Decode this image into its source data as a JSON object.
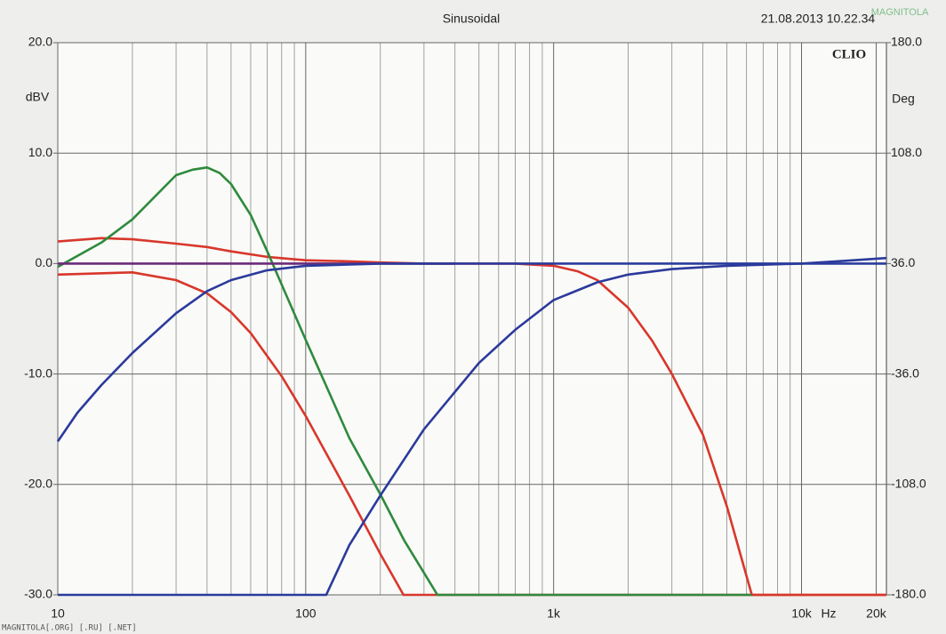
{
  "chart_data": {
    "type": "line",
    "title": "Sinusoidal",
    "timestamp": "21.08.2013 10.22.34",
    "brand": "CLIO",
    "watermark": "MAGNITOLA",
    "footer": "MAGNITOLA[.ORG] [.RU] [.NET]",
    "ylabel": "dBV",
    "y2label": "Deg",
    "xlabel": "Hz",
    "log_x": true,
    "grid": true,
    "xlim": [
      10,
      22000
    ],
    "ylim": [
      -30,
      20
    ],
    "y2lim": [
      -180,
      180
    ],
    "xticks": [
      10,
      100,
      {
        "value": 1000,
        "label": "1k"
      },
      {
        "value": 10000,
        "label": "10k"
      },
      {
        "value": 20000,
        "label": "20k"
      }
    ],
    "xgrid": [
      20,
      30,
      40,
      50,
      60,
      70,
      80,
      90,
      200,
      300,
      400,
      500,
      600,
      700,
      800,
      900,
      2000,
      3000,
      4000,
      5000,
      6000,
      7000,
      8000,
      9000
    ],
    "yticks": [
      {
        "value": 20,
        "label": "20.0"
      },
      {
        "value": 10,
        "label": "10.0"
      },
      {
        "value": 0,
        "label": "0.0"
      },
      {
        "value": -10,
        "label": "-10.0"
      },
      {
        "value": -20,
        "label": "-20.0"
      },
      {
        "value": -30,
        "label": "-30.0"
      }
    ],
    "y2ticks": [
      {
        "value": 180,
        "label": "180.0"
      },
      {
        "value": 108,
        "label": "108.0"
      },
      {
        "value": 36,
        "label": "36.0"
      },
      {
        "value": -36,
        "label": "-36.0"
      },
      {
        "value": -108,
        "label": "-108.0"
      },
      {
        "value": -180,
        "label": "-180.0"
      }
    ],
    "series": [
      {
        "color": "#d8372b",
        "x": [
          10,
          20,
          30,
          40,
          50,
          60,
          80,
          100,
          150,
          200,
          248,
          22000
        ],
        "values": [
          -1.0,
          -0.8,
          -1.5,
          -2.7,
          -4.4,
          -6.3,
          -10.2,
          -13.8,
          -21.0,
          -26.3,
          -30,
          -30
        ]
      },
      {
        "color": "#d8372b",
        "x": [
          10,
          15,
          20,
          30,
          40,
          50,
          70,
          100,
          150,
          200,
          300,
          500,
          700,
          1000,
          1250,
          1500,
          2000,
          2500,
          3000,
          4000,
          5000,
          6300,
          22000
        ],
        "values": [
          2.0,
          2.3,
          2.2,
          1.8,
          1.5,
          1.1,
          0.6,
          0.3,
          0.2,
          0.1,
          0,
          0,
          0,
          -0.2,
          -0.7,
          -1.5,
          -4.0,
          -7.0,
          -10.0,
          -15.5,
          -22.0,
          -30,
          -30
        ]
      },
      {
        "color": "#2e8a3c",
        "x": [
          10,
          15,
          20,
          30,
          35,
          40,
          45,
          50,
          60,
          70,
          80,
          100,
          125,
          150,
          200,
          250,
          340,
          6300
        ],
        "values": [
          -0.3,
          1.9,
          4.0,
          8.0,
          8.5,
          8.7,
          8.2,
          7.2,
          4.4,
          1.1,
          -1.9,
          -6.9,
          -11.8,
          -15.8,
          -20.9,
          -25.1,
          -30,
          -30
        ]
      },
      {
        "color": "#6a2b78",
        "x": [
          10,
          400
        ],
        "values": [
          0,
          0
        ]
      },
      {
        "color": "#2b3a9c",
        "x": [
          10,
          12,
          15,
          20,
          30,
          40,
          50,
          70,
          100,
          200,
          22000
        ],
        "values": [
          -16.1,
          -13.5,
          -11.0,
          -8.1,
          -4.5,
          -2.5,
          -1.5,
          -0.6,
          -0.2,
          0,
          0
        ]
      },
      {
        "color": "#2b3a9c",
        "x": [
          10,
          121,
          150,
          200,
          300,
          500,
          700,
          1000,
          1500,
          2000,
          3000,
          5000,
          10000,
          15000,
          22000
        ],
        "values": [
          -30,
          -30,
          -25.5,
          -21,
          -15,
          -9,
          -6,
          -3.3,
          -1.7,
          -1.0,
          -0.5,
          -0.2,
          0,
          0.25,
          0.5
        ]
      }
    ]
  }
}
